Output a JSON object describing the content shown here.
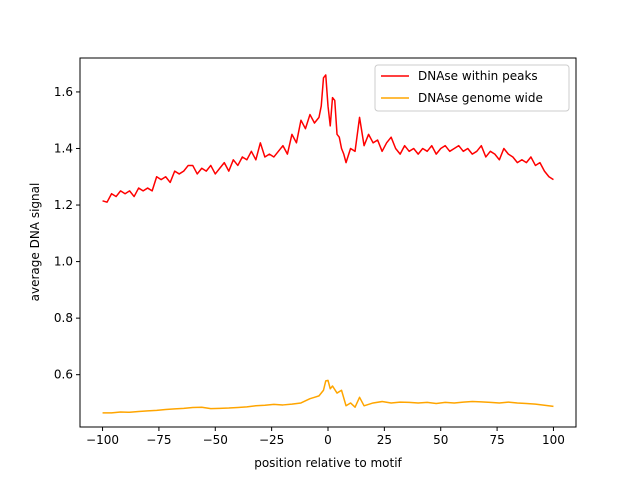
{
  "chart_data": {
    "type": "line",
    "title": "",
    "xlabel": "position relative to motif",
    "ylabel": "average DNA signal",
    "xlim": [
      -110,
      110
    ],
    "ylim": [
      0.415,
      1.72
    ],
    "xticks": [
      -100,
      -75,
      -50,
      -25,
      0,
      25,
      50,
      75,
      100
    ],
    "xtick_labels": [
      "−100",
      "−75",
      "−50",
      "−25",
      "0",
      "25",
      "50",
      "75",
      "100"
    ],
    "yticks": [
      0.6,
      0.8,
      1.0,
      1.2,
      1.4,
      1.6
    ],
    "ytick_labels": [
      "0.6",
      "0.8",
      "1.0",
      "1.2",
      "1.4",
      "1.6"
    ],
    "grid": false,
    "legend_position": "top-right",
    "series": [
      {
        "name": "DNAse within peaks",
        "color": "#ff0000",
        "x": [
          -100,
          -98,
          -96,
          -94,
          -92,
          -90,
          -88,
          -86,
          -84,
          -82,
          -80,
          -78,
          -76,
          -74,
          -72,
          -70,
          -68,
          -66,
          -64,
          -62,
          -60,
          -58,
          -56,
          -54,
          -52,
          -50,
          -48,
          -46,
          -44,
          -42,
          -40,
          -38,
          -36,
          -34,
          -32,
          -30,
          -28,
          -26,
          -24,
          -22,
          -20,
          -18,
          -16,
          -14,
          -12,
          -10,
          -8,
          -6,
          -4,
          -3,
          -2,
          -1,
          0,
          1,
          2,
          3,
          4,
          5,
          6,
          7,
          8,
          10,
          12,
          14,
          16,
          18,
          20,
          22,
          24,
          26,
          28,
          30,
          32,
          34,
          36,
          38,
          40,
          42,
          44,
          46,
          48,
          50,
          52,
          54,
          56,
          58,
          60,
          62,
          64,
          66,
          68,
          70,
          72,
          74,
          76,
          78,
          80,
          82,
          84,
          86,
          88,
          90,
          92,
          94,
          96,
          98,
          100
        ],
        "y": [
          1.215,
          1.21,
          1.24,
          1.23,
          1.25,
          1.24,
          1.25,
          1.23,
          1.26,
          1.25,
          1.26,
          1.25,
          1.3,
          1.29,
          1.3,
          1.28,
          1.32,
          1.31,
          1.32,
          1.34,
          1.34,
          1.31,
          1.33,
          1.32,
          1.34,
          1.31,
          1.33,
          1.35,
          1.32,
          1.36,
          1.34,
          1.37,
          1.36,
          1.39,
          1.36,
          1.42,
          1.37,
          1.38,
          1.37,
          1.39,
          1.41,
          1.38,
          1.45,
          1.42,
          1.5,
          1.47,
          1.52,
          1.49,
          1.51,
          1.55,
          1.65,
          1.66,
          1.55,
          1.48,
          1.58,
          1.57,
          1.45,
          1.44,
          1.4,
          1.38,
          1.35,
          1.4,
          1.39,
          1.51,
          1.41,
          1.45,
          1.42,
          1.43,
          1.39,
          1.42,
          1.44,
          1.4,
          1.38,
          1.41,
          1.39,
          1.4,
          1.38,
          1.4,
          1.39,
          1.41,
          1.38,
          1.4,
          1.41,
          1.39,
          1.4,
          1.41,
          1.39,
          1.4,
          1.38,
          1.39,
          1.41,
          1.37,
          1.39,
          1.38,
          1.36,
          1.4,
          1.38,
          1.37,
          1.35,
          1.36,
          1.35,
          1.37,
          1.34,
          1.35,
          1.32,
          1.3,
          1.29
        ]
      },
      {
        "name": "DNAse genome wide",
        "color": "#ffa500",
        "x": [
          -100,
          -96,
          -92,
          -88,
          -84,
          -80,
          -76,
          -72,
          -68,
          -64,
          -60,
          -56,
          -52,
          -48,
          -44,
          -40,
          -36,
          -32,
          -28,
          -24,
          -20,
          -16,
          -12,
          -8,
          -6,
          -4,
          -2,
          -1,
          0,
          1,
          2,
          4,
          6,
          8,
          10,
          12,
          14,
          16,
          20,
          24,
          28,
          32,
          36,
          40,
          44,
          48,
          52,
          56,
          60,
          64,
          68,
          72,
          76,
          80,
          84,
          88,
          92,
          96,
          100
        ],
        "y": [
          0.465,
          0.465,
          0.468,
          0.467,
          0.47,
          0.472,
          0.474,
          0.477,
          0.479,
          0.481,
          0.484,
          0.485,
          0.48,
          0.481,
          0.482,
          0.484,
          0.486,
          0.49,
          0.492,
          0.495,
          0.493,
          0.496,
          0.5,
          0.515,
          0.52,
          0.525,
          0.545,
          0.578,
          0.58,
          0.55,
          0.56,
          0.535,
          0.545,
          0.49,
          0.5,
          0.485,
          0.52,
          0.49,
          0.5,
          0.505,
          0.5,
          0.503,
          0.502,
          0.5,
          0.502,
          0.498,
          0.502,
          0.5,
          0.503,
          0.505,
          0.504,
          0.502,
          0.5,
          0.503,
          0.5,
          0.498,
          0.496,
          0.492,
          0.488
        ]
      }
    ]
  }
}
